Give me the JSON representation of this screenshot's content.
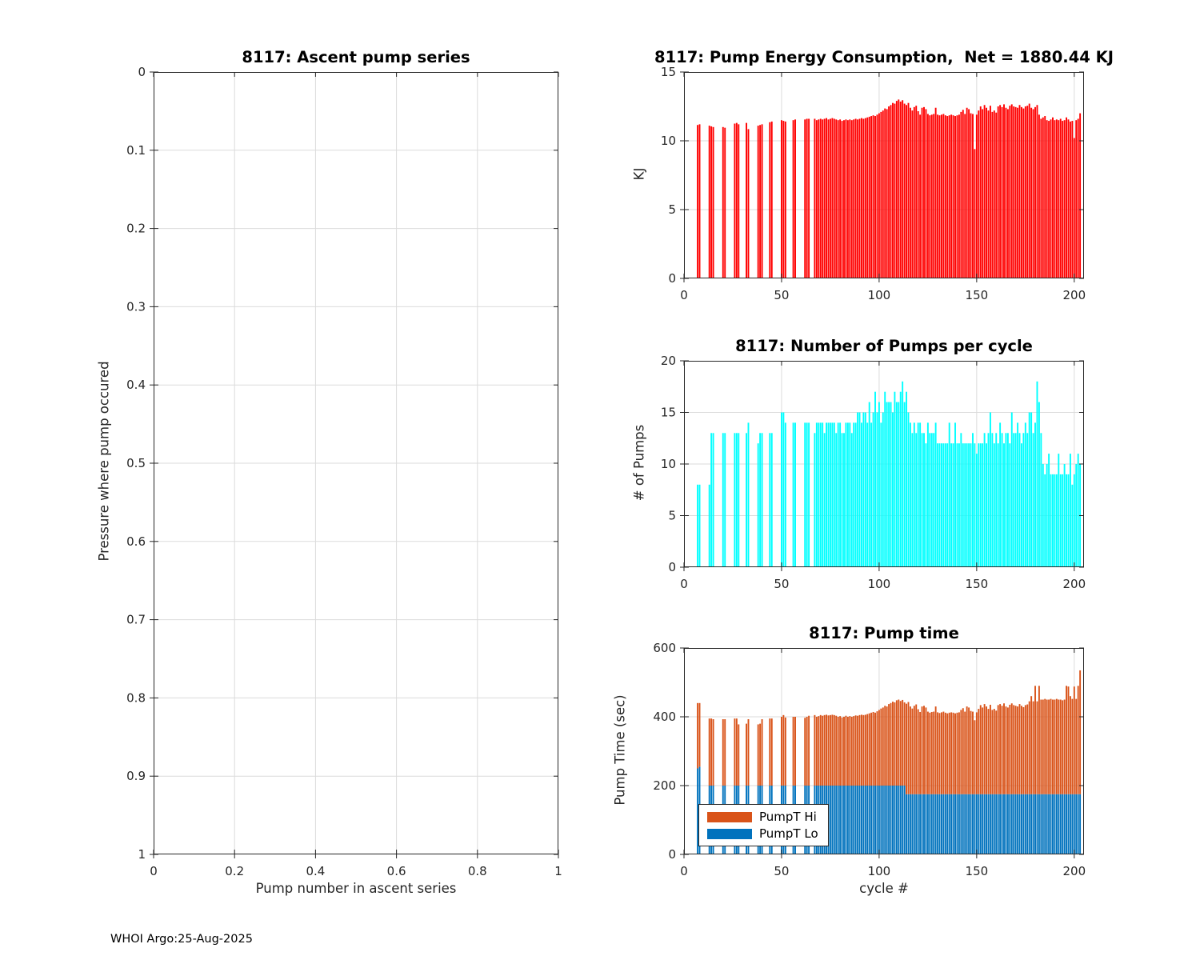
{
  "style": {
    "axis_color": "#262626",
    "grid_color": "#DBDBDB",
    "background": "#FFFFFF"
  },
  "footer": "WHOI Argo:25-Aug-2025",
  "legend": {
    "hi_label": "PumpT Hi",
    "lo_label": "PumpT Lo"
  },
  "chart_data": [
    {
      "name": "ascent-pump-series",
      "type": "scatter",
      "title": "8117: Ascent pump series",
      "xlabel": "Pump number in ascent series",
      "ylabel": "Pressure where pump occured",
      "xlim": [
        0,
        1
      ],
      "ylim": [
        0,
        1
      ],
      "y_reversed": true,
      "grid": true,
      "xticks": [
        "0",
        "0.2",
        "0.4",
        "0.6",
        "0.8",
        "1"
      ],
      "yticks": [
        "0",
        "0.1",
        "0.2",
        "0.3",
        "0.4",
        "0.5",
        "0.6",
        "0.7",
        "0.8",
        "0.9",
        "1"
      ],
      "x": [],
      "values": []
    },
    {
      "name": "pump-energy",
      "type": "bar",
      "title": "8117: Pump Energy Consumption,  Net = 1880.44 KJ",
      "ylabel": "KJ",
      "xlim": [
        0,
        205
      ],
      "ylim": [
        0,
        15
      ],
      "grid": true,
      "xticks": [
        "0",
        "50",
        "100",
        "150",
        "200"
      ],
      "yticks": [
        "0",
        "5",
        "10",
        "15"
      ],
      "bar_color": "#FF0000",
      "x": [
        7,
        8,
        13,
        14,
        15,
        20,
        21,
        26,
        27,
        28,
        32,
        33,
        38,
        39,
        40,
        44,
        45,
        50,
        51,
        52,
        56,
        57,
        62,
        63,
        64,
        67,
        68,
        69,
        70,
        71,
        72,
        73,
        74,
        75,
        76,
        77,
        78,
        79,
        80,
        81,
        82,
        83,
        84,
        85,
        86,
        87,
        88,
        89,
        90,
        91,
        92,
        93,
        94,
        95,
        96,
        97,
        98,
        99,
        100,
        101,
        102,
        103,
        104,
        105,
        106,
        107,
        108,
        109,
        110,
        111,
        112,
        113,
        114,
        115,
        116,
        117,
        118,
        119,
        120,
        121,
        122,
        123,
        124,
        125,
        126,
        127,
        128,
        129,
        130,
        131,
        132,
        133,
        134,
        135,
        136,
        137,
        138,
        139,
        140,
        141,
        142,
        143,
        144,
        145,
        146,
        147,
        148,
        149,
        150,
        151,
        152,
        153,
        154,
        155,
        156,
        157,
        158,
        159,
        160,
        161,
        162,
        163,
        164,
        165,
        166,
        167,
        168,
        169,
        170,
        171,
        172,
        173,
        174,
        175,
        176,
        177,
        178,
        179,
        180,
        181,
        182,
        183,
        184,
        185,
        186,
        187,
        188,
        189,
        190,
        191,
        192,
        193,
        194,
        195,
        196,
        197,
        198,
        199,
        200,
        201,
        202,
        203
      ],
      "values": [
        11.15,
        11.2,
        11.1,
        11.05,
        11.0,
        11.0,
        10.95,
        11.25,
        11.3,
        11.2,
        11.3,
        10.85,
        11.1,
        11.15,
        11.2,
        11.35,
        11.4,
        11.5,
        11.45,
        11.4,
        11.5,
        11.55,
        11.55,
        11.6,
        11.6,
        11.6,
        11.5,
        11.55,
        11.6,
        11.55,
        11.6,
        11.65,
        11.55,
        11.6,
        11.65,
        11.6,
        11.55,
        11.5,
        11.55,
        11.45,
        11.5,
        11.55,
        11.5,
        11.55,
        11.5,
        11.55,
        11.6,
        11.55,
        11.6,
        11.65,
        11.6,
        11.65,
        11.7,
        11.75,
        11.8,
        11.85,
        11.8,
        11.9,
        12.0,
        12.1,
        12.2,
        12.35,
        12.3,
        12.5,
        12.6,
        12.75,
        12.7,
        12.9,
        13.0,
        12.85,
        12.95,
        12.7,
        12.6,
        12.75,
        12.4,
        12.2,
        12.45,
        12.55,
        12.15,
        11.9,
        12.4,
        12.45,
        12.3,
        11.95,
        11.85,
        11.9,
        11.95,
        12.4,
        11.9,
        11.85,
        11.9,
        11.95,
        11.85,
        11.8,
        11.85,
        11.9,
        11.85,
        11.8,
        11.85,
        11.9,
        12.1,
        12.25,
        11.95,
        12.4,
        12.3,
        12.0,
        11.95,
        9.4,
        11.9,
        12.2,
        12.5,
        12.3,
        12.6,
        12.4,
        12.2,
        12.55,
        12.1,
        12.2,
        12.05,
        12.5,
        12.6,
        12.45,
        12.65,
        12.4,
        12.3,
        12.55,
        12.65,
        12.5,
        12.45,
        12.4,
        12.6,
        12.45,
        12.35,
        12.5,
        12.55,
        12.7,
        12.4,
        12.3,
        12.45,
        12.6,
        11.9,
        11.6,
        11.7,
        11.8,
        11.5,
        11.45,
        11.55,
        11.7,
        11.5,
        11.55,
        11.5,
        11.6,
        11.45,
        11.5,
        11.7,
        11.55,
        11.4,
        11.45,
        10.2,
        11.5,
        11.6,
        12.0
      ]
    },
    {
      "name": "pumps-per-cycle",
      "type": "bar",
      "title": "8117: Number of Pumps per cycle",
      "ylabel": "# of Pumps",
      "xlim": [
        0,
        205
      ],
      "ylim": [
        0,
        20
      ],
      "grid": true,
      "xticks": [
        "0",
        "50",
        "100",
        "150",
        "200"
      ],
      "yticks": [
        "0",
        "5",
        "10",
        "15",
        "20"
      ],
      "bar_color": "#00FFFF",
      "x": [
        7,
        8,
        13,
        14,
        15,
        20,
        21,
        26,
        27,
        28,
        32,
        33,
        38,
        39,
        40,
        44,
        45,
        50,
        51,
        52,
        56,
        57,
        62,
        63,
        64,
        67,
        68,
        69,
        70,
        71,
        72,
        73,
        74,
        75,
        76,
        77,
        78,
        79,
        80,
        81,
        82,
        83,
        84,
        85,
        86,
        87,
        88,
        89,
        90,
        91,
        92,
        93,
        94,
        95,
        96,
        97,
        98,
        99,
        100,
        101,
        102,
        103,
        104,
        105,
        106,
        107,
        108,
        109,
        110,
        111,
        112,
        113,
        114,
        115,
        116,
        117,
        118,
        119,
        120,
        121,
        122,
        123,
        124,
        125,
        126,
        127,
        128,
        129,
        130,
        131,
        132,
        133,
        134,
        135,
        136,
        137,
        138,
        139,
        140,
        141,
        142,
        143,
        144,
        145,
        146,
        147,
        148,
        149,
        150,
        151,
        152,
        153,
        154,
        155,
        156,
        157,
        158,
        159,
        160,
        161,
        162,
        163,
        164,
        165,
        166,
        167,
        168,
        169,
        170,
        171,
        172,
        173,
        174,
        175,
        176,
        177,
        178,
        179,
        180,
        181,
        182,
        183,
        184,
        185,
        186,
        187,
        188,
        189,
        190,
        191,
        192,
        193,
        194,
        195,
        196,
        197,
        198,
        199,
        200,
        201,
        202,
        203
      ],
      "values": [
        8,
        8,
        8,
        13,
        13,
        13,
        13,
        13,
        13,
        13,
        13,
        14,
        12,
        13,
        13,
        13,
        13,
        15,
        15,
        14,
        14,
        14,
        14,
        14,
        14,
        13,
        14,
        14,
        14,
        14,
        13,
        14,
        14,
        14,
        14,
        14,
        13,
        14,
        14,
        13,
        13,
        14,
        14,
        14,
        13,
        14,
        14,
        15,
        15,
        14,
        15,
        15,
        14,
        16,
        14,
        15,
        17,
        15,
        16,
        14,
        15,
        17,
        16,
        16,
        16,
        15,
        17,
        16,
        16,
        17,
        18,
        16,
        17,
        15,
        14,
        13,
        14,
        13,
        14,
        14,
        13,
        13,
        12,
        14,
        13,
        13,
        13,
        14,
        12,
        12,
        12,
        12,
        12,
        12,
        14,
        12,
        12,
        14,
        12,
        12,
        13,
        12,
        12,
        12,
        12,
        12,
        13,
        12,
        11,
        12,
        12,
        12,
        13,
        12,
        13,
        15,
        13,
        12,
        13,
        12,
        14,
        13,
        12,
        13,
        13,
        12,
        15,
        13,
        13,
        14,
        13,
        12,
        13,
        14,
        13,
        15,
        15,
        13,
        14,
        18,
        16,
        13,
        10,
        9,
        10,
        11,
        9,
        9,
        9,
        9,
        11,
        9,
        9,
        10,
        9,
        9,
        11,
        8,
        9,
        10,
        11,
        10
      ]
    },
    {
      "name": "pump-time",
      "type": "stacked-bar",
      "title": "8117: Pump time",
      "xlabel": "cycle #",
      "ylabel": "Pump Time (sec)",
      "xlim": [
        0,
        205
      ],
      "ylim": [
        0,
        600
      ],
      "grid": true,
      "xticks": [
        "0",
        "50",
        "100",
        "150",
        "200"
      ],
      "yticks": [
        "0",
        "200",
        "400",
        "600"
      ],
      "legend_position": "bottom-left",
      "x": [
        7,
        8,
        13,
        14,
        15,
        20,
        21,
        26,
        27,
        28,
        32,
        33,
        38,
        39,
        40,
        44,
        45,
        50,
        51,
        52,
        56,
        57,
        62,
        63,
        64,
        67,
        68,
        69,
        70,
        71,
        72,
        73,
        74,
        75,
        76,
        77,
        78,
        79,
        80,
        81,
        82,
        83,
        84,
        85,
        86,
        87,
        88,
        89,
        90,
        91,
        92,
        93,
        94,
        95,
        96,
        97,
        98,
        99,
        100,
        101,
        102,
        103,
        104,
        105,
        106,
        107,
        108,
        109,
        110,
        111,
        112,
        113,
        114,
        115,
        116,
        117,
        118,
        119,
        120,
        121,
        122,
        123,
        124,
        125,
        126,
        127,
        128,
        129,
        130,
        131,
        132,
        133,
        134,
        135,
        136,
        137,
        138,
        139,
        140,
        141,
        142,
        143,
        144,
        145,
        146,
        147,
        148,
        149,
        150,
        151,
        152,
        153,
        154,
        155,
        156,
        157,
        158,
        159,
        160,
        161,
        162,
        163,
        164,
        165,
        166,
        167,
        168,
        169,
        170,
        171,
        172,
        173,
        174,
        175,
        176,
        177,
        178,
        179,
        180,
        181,
        182,
        183,
        184,
        185,
        186,
        187,
        188,
        189,
        190,
        191,
        192,
        193,
        194,
        195,
        196,
        197,
        198,
        199,
        200,
        201,
        202,
        203
      ],
      "series": [
        {
          "name": "PumpT Hi",
          "color": "#D95319",
          "values": [
            190,
            185,
            195,
            195,
            193,
            193,
            193,
            195,
            195,
            178,
            180,
            193,
            178,
            180,
            193,
            195,
            195,
            200,
            205,
            198,
            200,
            200,
            197,
            200,
            203,
            205,
            200,
            202,
            205,
            203,
            205,
            206,
            204,
            205,
            206,
            205,
            203,
            200,
            202,
            198,
            200,
            203,
            200,
            202,
            200,
            202,
            204,
            203,
            205,
            206,
            205,
            206,
            208,
            210,
            212,
            214,
            212,
            216,
            220,
            224,
            227,
            232,
            230,
            237,
            240,
            244,
            242,
            248,
            250,
            246,
            249,
            242,
            263,
            268,
            255,
            249,
            257,
            261,
            247,
            239,
            255,
            257,
            252,
            240,
            237,
            239,
            240,
            255,
            238,
            236,
            238,
            240,
            237,
            235,
            237,
            238,
            237,
            235,
            237,
            238,
            245,
            250,
            240,
            255,
            252,
            242,
            240,
            215,
            238,
            248,
            259,
            252,
            262,
            255,
            248,
            260,
            245,
            248,
            243,
            259,
            262,
            257,
            264,
            255,
            252,
            260,
            264,
            259,
            257,
            255,
            262,
            257,
            253,
            259,
            261,
            270,
            285,
            270,
            315,
            270,
            315,
            275,
            275,
            277,
            275,
            275,
            277,
            275,
            275,
            277,
            275,
            275,
            273,
            275,
            315,
            313,
            285,
            277,
            313,
            277,
            315,
            360
          ]
        },
        {
          "name": "PumpT Lo",
          "color": "#0072BD",
          "values": [
            250,
            255,
            200,
            200,
            200,
            200,
            200,
            200,
            200,
            200,
            200,
            200,
            200,
            200,
            200,
            200,
            200,
            200,
            200,
            200,
            200,
            200,
            200,
            200,
            200,
            200,
            200,
            200,
            200,
            200,
            200,
            200,
            200,
            200,
            200,
            200,
            200,
            200,
            200,
            200,
            200,
            200,
            200,
            200,
            200,
            200,
            200,
            200,
            200,
            200,
            200,
            200,
            200,
            200,
            200,
            200,
            200,
            200,
            200,
            200,
            200,
            200,
            200,
            200,
            200,
            200,
            200,
            200,
            200,
            200,
            200,
            200,
            175,
            175,
            175,
            175,
            175,
            175,
            175,
            175,
            175,
            175,
            175,
            175,
            175,
            175,
            175,
            175,
            175,
            175,
            175,
            175,
            175,
            175,
            175,
            175,
            175,
            175,
            175,
            175,
            175,
            175,
            175,
            175,
            175,
            175,
            175,
            175,
            175,
            175,
            175,
            175,
            175,
            175,
            175,
            175,
            175,
            175,
            175,
            175,
            175,
            175,
            175,
            175,
            175,
            175,
            175,
            175,
            175,
            175,
            175,
            175,
            175,
            175,
            175,
            175,
            175,
            175,
            175,
            175,
            175,
            175,
            175,
            175,
            175,
            175,
            175,
            175,
            175,
            175,
            175,
            175,
            175,
            175,
            175,
            175,
            175,
            175,
            175,
            175,
            175,
            175
          ]
        }
      ]
    }
  ]
}
